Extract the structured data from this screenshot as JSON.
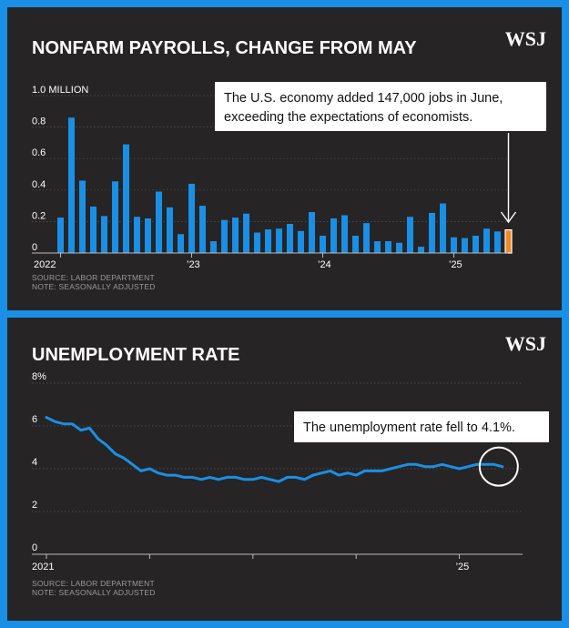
{
  "brand": {
    "logo": "WSJ",
    "accent": "#1a8fe6",
    "highlight": "#f08a24",
    "panel_bg": "#262424"
  },
  "chart_data": [
    {
      "type": "bar",
      "title": "NONFARM PAYROLLS, CHANGE FROM MAY",
      "ylabel": "",
      "y_ticks": [
        {
          "value": 0,
          "label": "0"
        },
        {
          "value": 0.2,
          "label": "0.2"
        },
        {
          "value": 0.4,
          "label": "0.4"
        },
        {
          "value": 0.6,
          "label": "0.6"
        },
        {
          "value": 0.8,
          "label": "0.8"
        },
        {
          "value": 1.0,
          "label": "1.0 MILLION"
        }
      ],
      "ylim": [
        0,
        1.0
      ],
      "x_labels": [
        {
          "index": 0,
          "label": "2022"
        },
        {
          "index": 12,
          "label": "’23"
        },
        {
          "index": 24,
          "label": "’24"
        },
        {
          "index": 36,
          "label": "’25"
        }
      ],
      "values": [
        0.225,
        0.86,
        0.46,
        0.295,
        0.235,
        0.455,
        0.69,
        0.23,
        0.22,
        0.39,
        0.29,
        0.12,
        0.44,
        0.3,
        0.075,
        0.21,
        0.225,
        0.25,
        0.13,
        0.15,
        0.155,
        0.185,
        0.14,
        0.26,
        0.11,
        0.22,
        0.24,
        0.11,
        0.19,
        0.075,
        0.075,
        0.065,
        0.23,
        0.04,
        0.255,
        0.315,
        0.1,
        0.095,
        0.11,
        0.155,
        0.137,
        0.147
      ],
      "highlight_index": 41,
      "annotation": "The U.S. economy added 147,000 jobs in June, exceeding the expectations of economists.",
      "source": "SOURCE: LABOR DEPARTMENT",
      "note": "NOTE: SEASONALLY ADJUSTED"
    },
    {
      "type": "line",
      "title": "UNEMPLOYMENT RATE",
      "y_ticks": [
        {
          "value": 0,
          "label": "0"
        },
        {
          "value": 2,
          "label": "2"
        },
        {
          "value": 4,
          "label": "4"
        },
        {
          "value": 6,
          "label": "6"
        },
        {
          "value": 8,
          "label": "8%"
        }
      ],
      "ylim": [
        0,
        8
      ],
      "x_labels": [
        {
          "index": 0,
          "label": "2021"
        },
        {
          "index": 48,
          "label": "’25"
        }
      ],
      "year_marks": [
        12,
        24,
        36,
        48
      ],
      "values": [
        6.4,
        6.2,
        6.1,
        6.1,
        5.8,
        5.9,
        5.4,
        5.1,
        4.7,
        4.5,
        4.2,
        3.9,
        4.0,
        3.8,
        3.7,
        3.7,
        3.6,
        3.6,
        3.5,
        3.6,
        3.5,
        3.6,
        3.6,
        3.5,
        3.5,
        3.6,
        3.5,
        3.4,
        3.6,
        3.6,
        3.5,
        3.7,
        3.8,
        3.9,
        3.7,
        3.8,
        3.7,
        3.9,
        3.9,
        3.9,
        4.0,
        4.1,
        4.2,
        4.2,
        4.1,
        4.1,
        4.2,
        4.1,
        4.0,
        4.1,
        4.2,
        4.2,
        4.2,
        4.1
      ],
      "annotation": "The unemployment rate fell to 4.1%.",
      "source": "SOURCE: LABOR DEPARTMENT",
      "note": "NOTE: SEASONALLY ADJUSTED"
    }
  ]
}
